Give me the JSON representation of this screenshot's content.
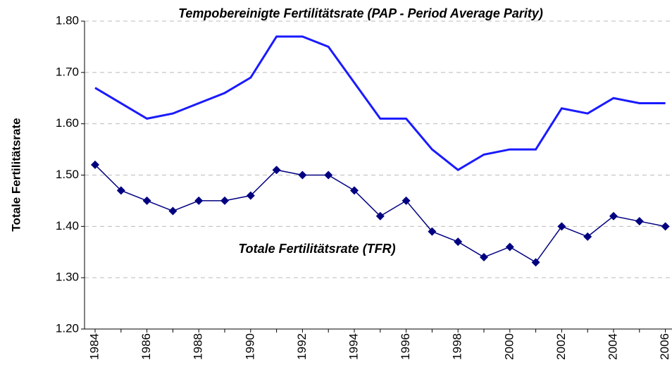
{
  "chart_data": {
    "type": "line",
    "y_label": "Totale Fertilitätsrate",
    "categories": [
      "1984",
      null,
      "1986",
      null,
      "1988",
      null,
      "1990",
      null,
      "1992",
      null,
      "1994",
      null,
      "1996",
      null,
      "1998",
      null,
      "2000",
      null,
      "2002",
      null,
      "2004",
      null,
      "2006"
    ],
    "series": [
      {
        "name": "Tempobereinigte Fertilitätsrate (PAP - Period Average Parity)",
        "color": "#1a1aff",
        "marker": false,
        "values": [
          1.67,
          1.64,
          1.61,
          1.62,
          1.64,
          1.66,
          1.69,
          1.77,
          1.77,
          1.75,
          1.68,
          1.61,
          1.61,
          1.55,
          1.51,
          1.54,
          1.55,
          1.55,
          1.63,
          1.62,
          1.65,
          1.64,
          1.64
        ]
      },
      {
        "name": "Totale Fertilitätsrate (TFR)",
        "color": "#000080",
        "marker": true,
        "values": [
          1.52,
          1.47,
          1.45,
          1.43,
          1.45,
          1.45,
          1.46,
          1.51,
          1.5,
          1.5,
          1.47,
          1.42,
          1.45,
          1.39,
          1.37,
          1.34,
          1.36,
          1.33,
          1.4,
          1.38,
          1.42,
          1.41,
          1.4
        ]
      }
    ],
    "ylim": [
      1.2,
      1.8
    ],
    "yticks": [
      {
        "value": 1.2,
        "label": "1.20"
      },
      {
        "value": 1.3,
        "label": "1.30"
      },
      {
        "value": 1.4,
        "label": "1.40"
      },
      {
        "value": 1.5,
        "label": "1.50"
      },
      {
        "value": 1.6,
        "label": "1.60"
      },
      {
        "value": 1.7,
        "label": "1.70"
      },
      {
        "value": 1.8,
        "label": "1.80"
      }
    ],
    "grid": true
  }
}
